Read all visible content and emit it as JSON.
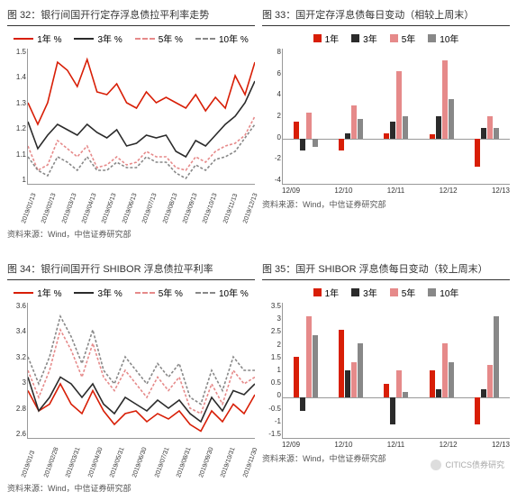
{
  "source_label": "资料来源：Wind，中信证券研究部",
  "series_names": {
    "y1": "1年",
    "y3": "3年",
    "y5": "5年",
    "y10": "10年"
  },
  "line_legend_suffix": " %",
  "colors": {
    "y1": "#d81e06",
    "y3": "#2b2b2b",
    "y5": "#e68a8a",
    "y10": "#888888",
    "axis": "#999999",
    "text": "#333333",
    "bg": "#ffffff"
  },
  "dash": {
    "y1": "solid",
    "y3": "solid",
    "y5": "dashed",
    "y10": "dashed"
  },
  "chart32": {
    "title": "图 32：银行间国开行定存浮息债拉平利率走势",
    "type": "line",
    "ylim": [
      1.0,
      1.5
    ],
    "ytick_step": 0.1,
    "x_labels": [
      "2019/01/13",
      "2019/02/13",
      "2019/03/13",
      "2019/04/13",
      "2019/05/13",
      "2019/06/13",
      "2019/07/13",
      "2019/08/13",
      "2019/09/13",
      "2019/10/13",
      "2019/11/13",
      "2019/12/13"
    ],
    "series": {
      "y1": [
        1.3,
        1.22,
        1.3,
        1.45,
        1.42,
        1.36,
        1.46,
        1.34,
        1.33,
        1.37,
        1.3,
        1.28,
        1.34,
        1.3,
        1.32,
        1.3,
        1.28,
        1.33,
        1.27,
        1.32,
        1.28,
        1.4,
        1.33,
        1.45
      ],
      "y3": [
        1.23,
        1.13,
        1.18,
        1.22,
        1.2,
        1.18,
        1.22,
        1.19,
        1.17,
        1.2,
        1.14,
        1.15,
        1.18,
        1.17,
        1.18,
        1.12,
        1.1,
        1.16,
        1.14,
        1.18,
        1.22,
        1.25,
        1.3,
        1.38
      ],
      "y5": [
        1.14,
        1.05,
        1.07,
        1.16,
        1.13,
        1.1,
        1.14,
        1.06,
        1.07,
        1.1,
        1.07,
        1.08,
        1.12,
        1.1,
        1.1,
        1.06,
        1.05,
        1.1,
        1.08,
        1.12,
        1.14,
        1.15,
        1.18,
        1.25
      ],
      "y10": [
        1.1,
        1.05,
        1.03,
        1.1,
        1.08,
        1.05,
        1.1,
        1.05,
        1.05,
        1.08,
        1.06,
        1.06,
        1.1,
        1.08,
        1.08,
        1.04,
        1.02,
        1.07,
        1.05,
        1.09,
        1.1,
        1.12,
        1.17,
        1.22
      ]
    }
  },
  "chart33": {
    "title": "图 33：国开定存浮息债每日变动（相较上周末）",
    "type": "bar",
    "ylim": [
      -4,
      8
    ],
    "ytick_step": 2,
    "x_labels": [
      "12/09",
      "12/10",
      "12/11",
      "12/12",
      "12/13"
    ],
    "series": {
      "y1": [
        1.5,
        -1.0,
        0.5,
        0.4,
        -2.5
      ],
      "y3": [
        -1.0,
        0.5,
        1.5,
        2.0,
        1.0
      ],
      "y5": [
        2.3,
        3.0,
        6.0,
        7.0,
        2.0
      ],
      "y10": [
        -0.7,
        1.8,
        2.0,
        3.5,
        1.0
      ]
    }
  },
  "chart34": {
    "title": "图 34：银行间国开行 SHIBOR 浮息债拉平利率",
    "type": "line",
    "ylim": [
      2.6,
      3.6
    ],
    "ytick_step": 0.2,
    "x_labels": [
      "2019/01/3",
      "2019/02/28",
      "2019/03/31",
      "2019/04/30",
      "2019/05/31",
      "2019/06/30",
      "2019/07/31",
      "2019/08/31",
      "2019/09/30",
      "2019/10/31",
      "2019/11/30"
    ],
    "series": {
      "y1": [
        2.95,
        2.8,
        2.85,
        3.0,
        2.85,
        2.78,
        2.95,
        2.8,
        2.7,
        2.78,
        2.8,
        2.72,
        2.78,
        2.74,
        2.8,
        2.7,
        2.65,
        2.8,
        2.72,
        2.85,
        2.78,
        2.92
      ],
      "y3": [
        3.05,
        2.8,
        2.9,
        3.05,
        3.0,
        2.9,
        3.0,
        2.85,
        2.78,
        2.9,
        2.85,
        2.8,
        2.88,
        2.82,
        2.88,
        2.78,
        2.72,
        2.9,
        2.8,
        2.95,
        2.92,
        3.0
      ],
      "y5": [
        3.1,
        2.9,
        3.1,
        3.4,
        3.25,
        3.05,
        3.3,
        3.05,
        2.95,
        3.1,
        3.0,
        2.9,
        3.05,
        2.95,
        3.05,
        2.82,
        2.78,
        3.0,
        2.85,
        3.1,
        3.0,
        3.05
      ],
      "y10": [
        3.2,
        3.0,
        3.2,
        3.5,
        3.35,
        3.15,
        3.4,
        3.1,
        3.0,
        3.2,
        3.1,
        3.0,
        3.15,
        3.05,
        3.15,
        2.9,
        2.85,
        3.1,
        2.95,
        3.2,
        3.1,
        3.1
      ]
    }
  },
  "chart35": {
    "title": "图 35：国开 SHIBOR 浮息债每日变动（较上周末）",
    "type": "bar",
    "ylim": [
      -1.5,
      3.5
    ],
    "ytick_step": 0.5,
    "x_labels": [
      "12/09",
      "12/10",
      "12/11",
      "12/12",
      "12/13"
    ],
    "series": {
      "y1": [
        1.5,
        2.5,
        0.5,
        1.0,
        -1.0
      ],
      "y3": [
        -0.5,
        1.0,
        -1.0,
        0.3,
        0.3
      ],
      "y5": [
        3.0,
        1.3,
        1.0,
        2.0,
        1.2
      ],
      "y10": [
        2.3,
        2.0,
        0.2,
        1.3,
        3.0
      ]
    }
  },
  "watermark": "CITICS债券研究",
  "font": {
    "title_pt": 11,
    "axis_pt": 8,
    "legend_pt": 10
  },
  "line_width": 1.6
}
